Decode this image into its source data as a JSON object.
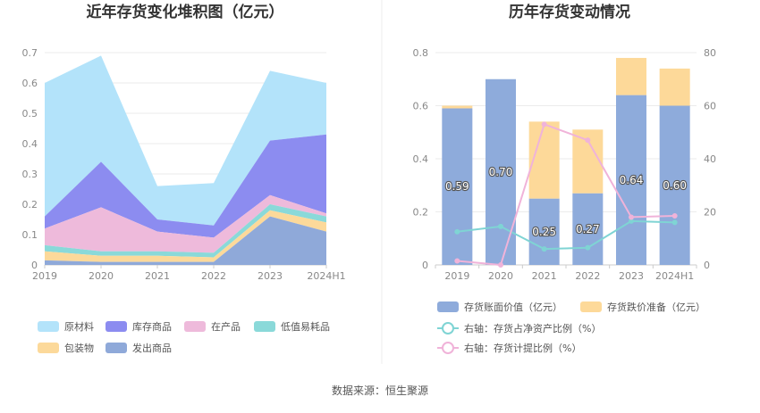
{
  "source": "数据来源：恒生聚源",
  "chart_data": [
    {
      "type": "area",
      "stacked": true,
      "title": "近年存货变化堆积图（亿元）",
      "categories": [
        "2019",
        "2020",
        "2021",
        "2022",
        "2023",
        "2024H1"
      ],
      "ylim": [
        0,
        0.7
      ],
      "yticks": [
        "0",
        "0.1",
        "0.2",
        "0.3",
        "0.4",
        "0.5",
        "0.6",
        "0.7"
      ],
      "series": [
        {
          "name": "发出商品",
          "color": "#8fa9d9",
          "values": [
            0.015,
            0.01,
            0.01,
            0.01,
            0.16,
            0.11
          ]
        },
        {
          "name": "包装物",
          "color": "#fcd99a",
          "values": [
            0.03,
            0.02,
            0.02,
            0.015,
            0.02,
            0.03
          ]
        },
        {
          "name": "低值易耗品",
          "color": "#8ad9d9",
          "values": [
            0.02,
            0.015,
            0.015,
            0.015,
            0.02,
            0.02
          ]
        },
        {
          "name": "在产品",
          "color": "#eebadb",
          "values": [
            0.055,
            0.145,
            0.065,
            0.05,
            0.03,
            0.01
          ]
        },
        {
          "name": "库存商品",
          "color": "#8c8cf0",
          "values": [
            0.04,
            0.15,
            0.04,
            0.04,
            0.18,
            0.26
          ]
        },
        {
          "name": "原材料",
          "color": "#b3e3fa",
          "values": [
            0.44,
            0.35,
            0.11,
            0.14,
            0.23,
            0.17
          ]
        }
      ],
      "legend": [
        "原材料",
        "库存商品",
        "在产品",
        "低值易耗品",
        "包装物",
        "发出商品"
      ]
    },
    {
      "type": "bar",
      "stacked": true,
      "title": "历年存货变动情况",
      "categories": [
        "2019",
        "2020",
        "2021",
        "2022",
        "2023",
        "2024H1"
      ],
      "ylim": [
        0,
        0.8
      ],
      "yticks": [
        "0",
        "0.2",
        "0.4",
        "0.6",
        "0.8"
      ],
      "y2lim": [
        0,
        80
      ],
      "y2ticks": [
        "0",
        "20",
        "40",
        "60",
        "80"
      ],
      "series": [
        {
          "name": "存货账面价值（亿元）",
          "color": "#8eabdb",
          "values": [
            0.59,
            0.7,
            0.25,
            0.27,
            0.64,
            0.6
          ],
          "labels": [
            "0.59",
            "0.70",
            "0.25",
            "0.27",
            "0.64",
            "0.60"
          ]
        },
        {
          "name": "存货跌价准备（亿元）",
          "color": "#fdd999",
          "values": [
            0.01,
            0.0,
            0.29,
            0.24,
            0.14,
            0.14
          ]
        }
      ],
      "lines": [
        {
          "name": "右轴：存货占净资产比例（%）",
          "color": "#7fd4d4",
          "axis": "right",
          "values": [
            12.5,
            14.5,
            6,
            6.5,
            16.5,
            16
          ]
        },
        {
          "name": "右轴：存货计提比例（%）",
          "color": "#f0b3d9",
          "axis": "right",
          "values": [
            1.5,
            0,
            53,
            47,
            18,
            18.5
          ]
        }
      ]
    }
  ]
}
